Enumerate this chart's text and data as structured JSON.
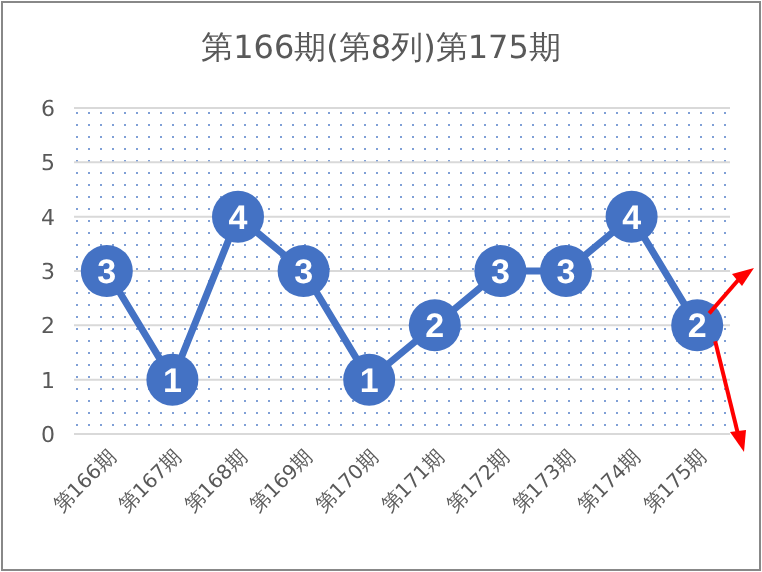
{
  "chart_data": {
    "type": "line",
    "title": "第166期(第8列)第175期",
    "categories": [
      "第166期",
      "第167期",
      "第168期",
      "第169期",
      "第170期",
      "第171期",
      "第172期",
      "第173期",
      "第174期",
      "第175期"
    ],
    "series": [
      {
        "color": "#4472c4",
        "values": [
          3,
          1,
          4,
          3,
          1,
          2,
          3,
          3,
          4,
          2
        ]
      }
    ],
    "ylim": [
      0,
      6
    ],
    "yticks": [
      0,
      1,
      2,
      3,
      4,
      5,
      6
    ],
    "grid": "y",
    "marker": "circle",
    "line_style": "solid",
    "data_labels": true
  }
}
